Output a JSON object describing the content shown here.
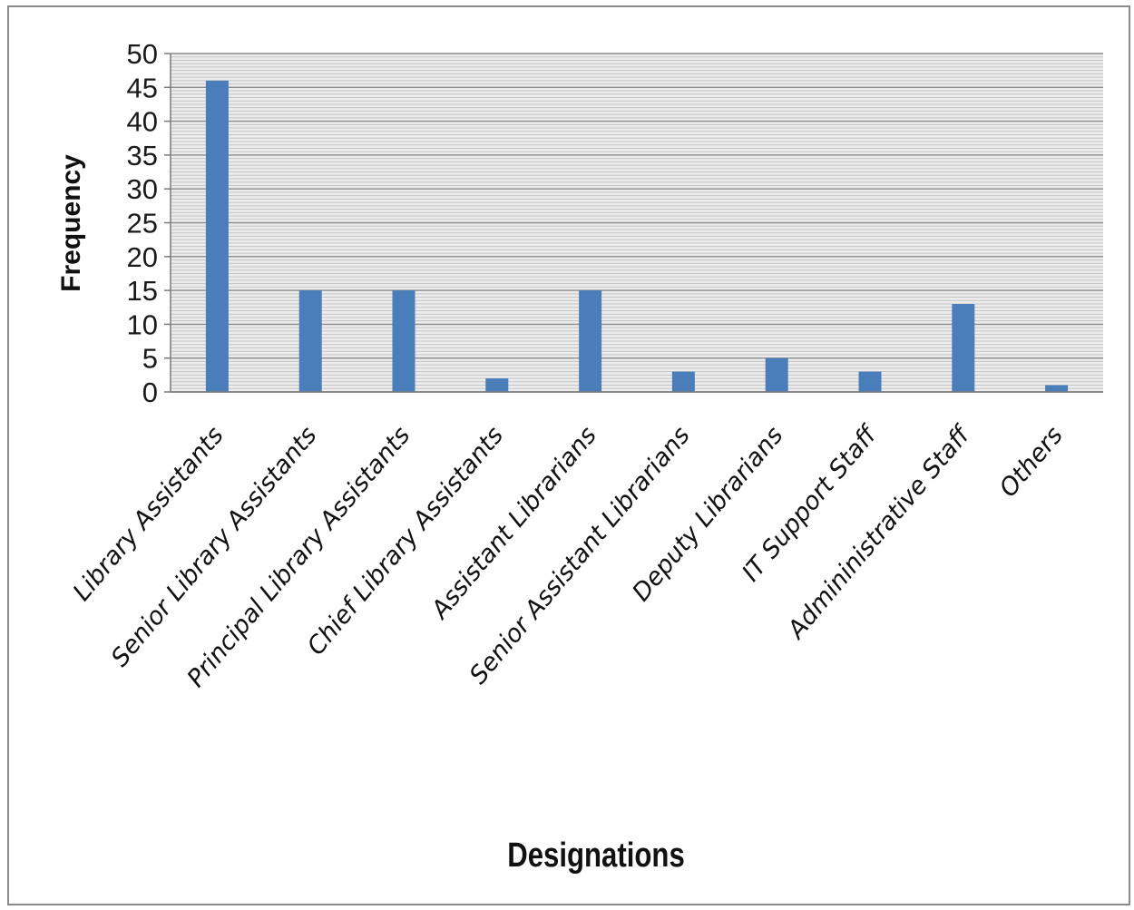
{
  "chart_data": {
    "type": "bar",
    "xlabel": "Designations",
    "ylabel": "Frequency",
    "ylim": [
      0,
      50
    ],
    "yticks": [
      "0",
      "5",
      "10",
      "15",
      "20",
      "25",
      "30",
      "35",
      "40",
      "45",
      "50"
    ],
    "grid": true,
    "legend": "none",
    "bar_color": "#4a7ebb",
    "categories": [
      "Library Assistants",
      "Senior Library Assistants",
      "Principal Library Assistants",
      "Chief Library Assistants",
      "Assistant Librarians",
      "Senior Assistant Librarians",
      "Deputy Librarians",
      "IT Support Staff",
      "Admininistrative Staff",
      "Others"
    ],
    "values": [
      46,
      15,
      15,
      2,
      15,
      3,
      5,
      3,
      13,
      1
    ]
  }
}
